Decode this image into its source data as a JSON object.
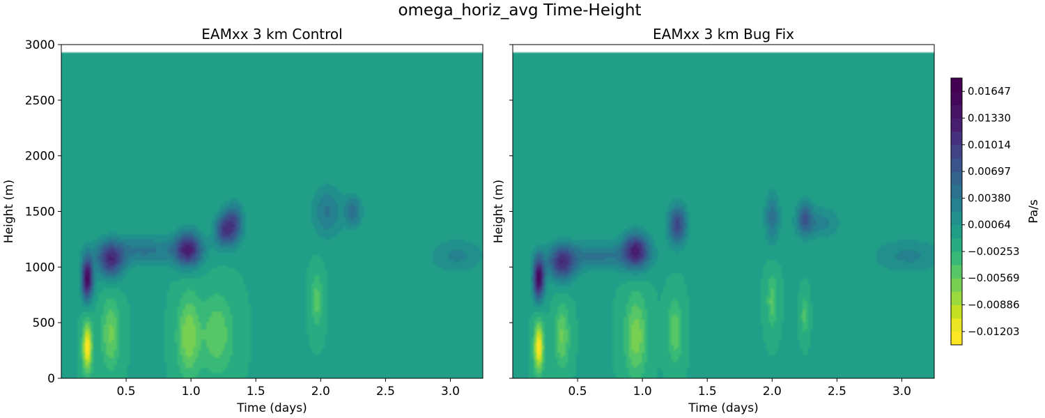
{
  "figure": {
    "suptitle": "omega_horiz_avg Time-Height"
  },
  "chart_data": [
    {
      "type": "heatmap",
      "title": "EAMxx 3 km Control",
      "xlabel": "Time (days)",
      "ylabel": "Height (m)",
      "xlim": [
        0.0,
        3.25
      ],
      "ylim": [
        0,
        3000
      ],
      "top_of_data_m": 2935,
      "xticks": [
        0.5,
        1.0,
        1.5,
        2.0,
        2.5,
        3.0
      ],
      "xtick_labels": [
        "0.5",
        "1.0",
        "1.5",
        "2.0",
        "2.5",
        "3.0"
      ],
      "yticks": [
        0,
        500,
        1000,
        1500,
        2000,
        2500,
        3000
      ],
      "ytick_labels": [
        "0",
        "500",
        "1000",
        "1500",
        "2000",
        "2500",
        "3000"
      ],
      "background_value": -0.0009,
      "features": [
        {
          "t": 0.2,
          "z": 900,
          "value": 0.0165,
          "sigma_t": 0.03,
          "sigma_z": 130
        },
        {
          "t": 0.2,
          "z": 280,
          "value": -0.012,
          "sigma_t": 0.025,
          "sigma_z": 150
        },
        {
          "t": 0.38,
          "z": 1060,
          "value": 0.011,
          "sigma_t": 0.07,
          "sigma_z": 110
        },
        {
          "t": 0.38,
          "z": 400,
          "value": -0.0052,
          "sigma_t": 0.05,
          "sigma_z": 220
        },
        {
          "t": 0.98,
          "z": 1160,
          "value": 0.012,
          "sigma_t": 0.07,
          "sigma_z": 110
        },
        {
          "t": 0.98,
          "z": 380,
          "value": -0.006,
          "sigma_t": 0.06,
          "sigma_z": 260
        },
        {
          "t": 1.25,
          "z": 1330,
          "value": 0.009,
          "sigma_t": 0.05,
          "sigma_z": 100
        },
        {
          "t": 1.33,
          "z": 1390,
          "value": 0.009,
          "sigma_t": 0.05,
          "sigma_z": 120
        },
        {
          "t": 1.2,
          "z": 400,
          "value": -0.0045,
          "sigma_t": 0.09,
          "sigma_z": 250
        },
        {
          "t": 0.65,
          "z": 1150,
          "value": 0.005,
          "sigma_t": 0.25,
          "sigma_z": 90
        },
        {
          "t": 2.05,
          "z": 1500,
          "value": 0.005,
          "sigma_t": 0.08,
          "sigma_z": 160
        },
        {
          "t": 2.25,
          "z": 1500,
          "value": 0.0055,
          "sigma_t": 0.05,
          "sigma_z": 100
        },
        {
          "t": 1.97,
          "z": 700,
          "value": -0.004,
          "sigma_t": 0.03,
          "sigma_z": 170
        },
        {
          "t": 3.05,
          "z": 1100,
          "value": 0.0035,
          "sigma_t": 0.15,
          "sigma_z": 110
        }
      ]
    },
    {
      "type": "heatmap",
      "title": "EAMxx 3 km Bug Fix",
      "xlabel": "Time (days)",
      "ylabel": "Height (m)",
      "xlim": [
        0.0,
        3.25
      ],
      "ylim": [
        0,
        3000
      ],
      "top_of_data_m": 2935,
      "xticks": [
        0.5,
        1.0,
        1.5,
        2.0,
        2.5,
        3.0
      ],
      "xtick_labels": [
        "0.5",
        "1.0",
        "1.5",
        "2.0",
        "2.5",
        "3.0"
      ],
      "yticks": [
        0,
        500,
        1000,
        1500,
        2000,
        2500,
        3000
      ],
      "ytick_labels": [
        "",
        "",
        "",
        "",
        "",
        "",
        ""
      ],
      "background_value": -0.0009,
      "features": [
        {
          "t": 0.2,
          "z": 900,
          "value": 0.0165,
          "sigma_t": 0.03,
          "sigma_z": 130
        },
        {
          "t": 0.2,
          "z": 280,
          "value": -0.012,
          "sigma_t": 0.025,
          "sigma_z": 150
        },
        {
          "t": 0.38,
          "z": 1030,
          "value": 0.0105,
          "sigma_t": 0.07,
          "sigma_z": 110
        },
        {
          "t": 0.38,
          "z": 380,
          "value": -0.005,
          "sigma_t": 0.04,
          "sigma_z": 200
        },
        {
          "t": 0.95,
          "z": 1150,
          "value": 0.012,
          "sigma_t": 0.07,
          "sigma_z": 110
        },
        {
          "t": 0.95,
          "z": 380,
          "value": -0.0058,
          "sigma_t": 0.06,
          "sigma_z": 260
        },
        {
          "t": 1.27,
          "z": 1380,
          "value": 0.01,
          "sigma_t": 0.05,
          "sigma_z": 120
        },
        {
          "t": 1.25,
          "z": 420,
          "value": -0.0045,
          "sigma_t": 0.04,
          "sigma_z": 200
        },
        {
          "t": 0.65,
          "z": 1100,
          "value": 0.005,
          "sigma_t": 0.25,
          "sigma_z": 90
        },
        {
          "t": 2.0,
          "z": 1450,
          "value": 0.0055,
          "sigma_t": 0.04,
          "sigma_z": 160
        },
        {
          "t": 2.25,
          "z": 1450,
          "value": 0.006,
          "sigma_t": 0.04,
          "sigma_z": 110
        },
        {
          "t": 2.35,
          "z": 1400,
          "value": 0.004,
          "sigma_t": 0.12,
          "sigma_z": 100
        },
        {
          "t": 2.0,
          "z": 700,
          "value": -0.004,
          "sigma_t": 0.03,
          "sigma_z": 170
        },
        {
          "t": 2.25,
          "z": 560,
          "value": -0.0038,
          "sigma_t": 0.02,
          "sigma_z": 120
        },
        {
          "t": 3.05,
          "z": 1100,
          "value": 0.0035,
          "sigma_t": 0.2,
          "sigma_z": 110
        }
      ]
    }
  ],
  "colorbar": {
    "label": "Pa/s",
    "vmin": -0.01361,
    "vmax": 0.01806,
    "levels": [
      -0.01361,
      -0.01203,
      -0.01044,
      -0.00886,
      -0.00728,
      -0.00569,
      -0.00411,
      -0.00253,
      -0.00095,
      0.00064,
      0.00222,
      0.0038,
      0.00539,
      0.00697,
      0.00855,
      0.01014,
      0.01172,
      0.0133,
      0.01489,
      0.01647,
      0.01806
    ],
    "ticks": [
      -0.01203,
      -0.00886,
      -0.00569,
      -0.00253,
      0.00064,
      0.0038,
      0.00697,
      0.01014,
      0.0133,
      0.01647
    ],
    "tick_labels": [
      "−0.01203",
      "−0.00886",
      "−0.00569",
      "−0.00253",
      "0.00064",
      "0.00380",
      "0.00697",
      "0.01014",
      "0.01330",
      "0.01647"
    ],
    "colors": [
      "#fde725",
      "#c8e020",
      "#90d743",
      "#5ec962",
      "#35b779",
      "#20a486",
      "#21918c",
      "#287c8e",
      "#31688e",
      "#3b528b",
      "#443983",
      "#481f70",
      "#440154"
    ],
    "color_stops": [
      -0.01203,
      -0.0098,
      -0.0076,
      -0.0053,
      -0.0031,
      -0.0009,
      0.0013,
      0.0035,
      0.0058,
      0.008,
      0.0102,
      0.0125,
      0.01647
    ]
  }
}
